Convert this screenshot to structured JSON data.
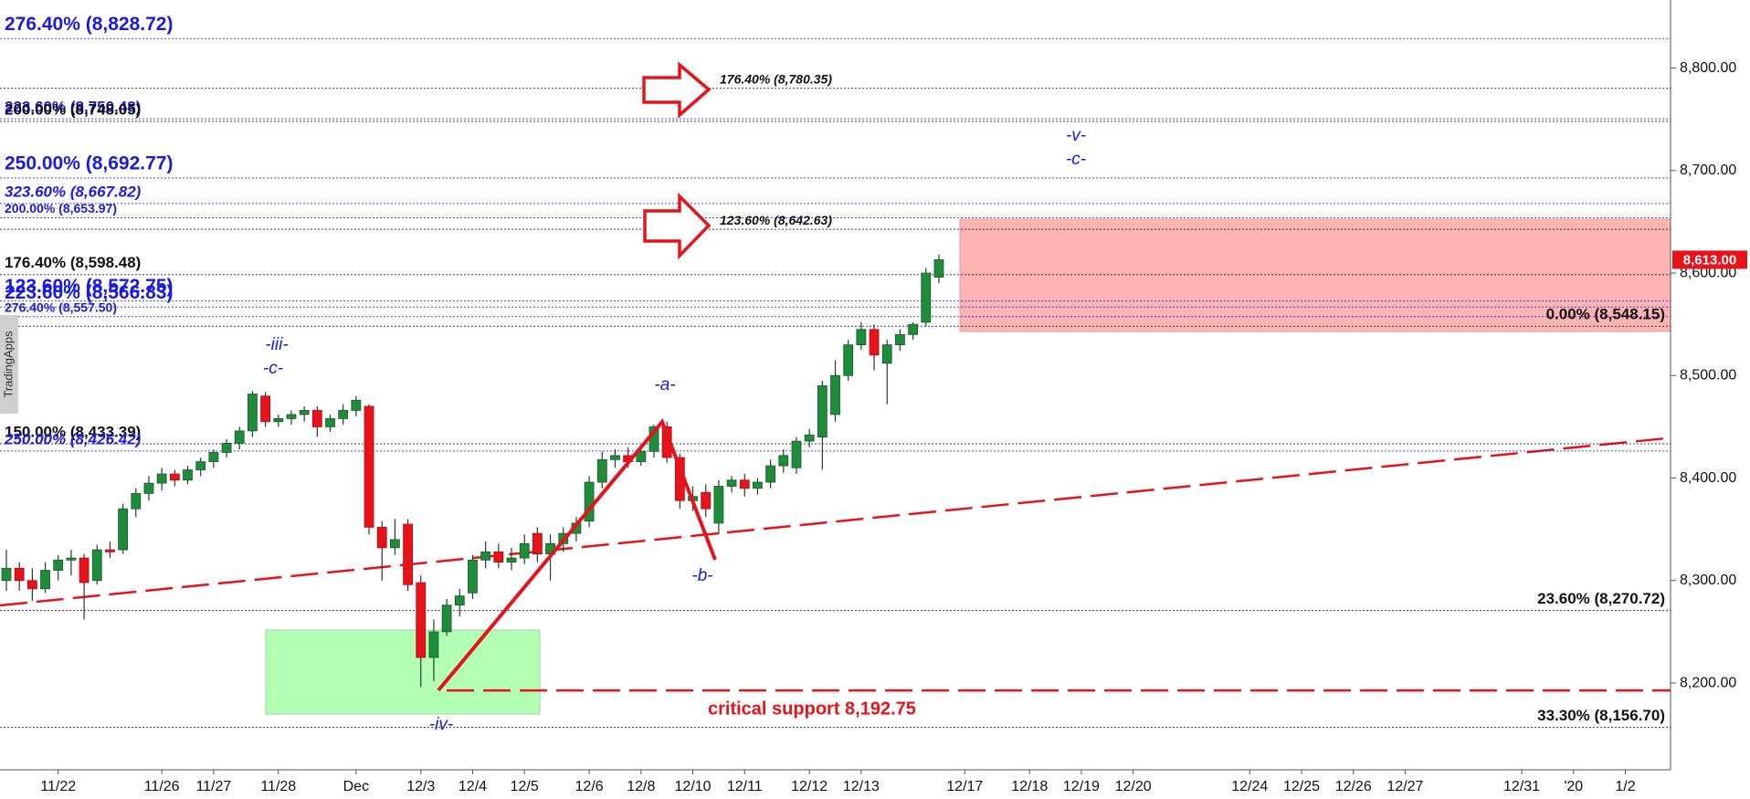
{
  "chart_data": {
    "type": "candlestick",
    "side_label": "TradingApps",
    "categories": [
      null,
      null,
      null,
      null,
      "11/22",
      null,
      null,
      null,
      null,
      null,
      null,
      null,
      "11/26",
      null,
      null,
      null,
      "11/27",
      null,
      null,
      null,
      null,
      "11/28",
      null,
      null,
      null,
      null,
      null,
      "Dec",
      null,
      null,
      null,
      null,
      "12/3",
      null,
      null,
      null,
      "12/4",
      null,
      null,
      null,
      "12/5",
      null,
      null,
      null,
      null,
      "12/6",
      null,
      null,
      null,
      "12/8",
      null,
      null,
      null,
      "12/10",
      null,
      null,
      null,
      "12/11",
      null,
      null,
      null,
      null,
      "12/12",
      null,
      null,
      null,
      "12/13",
      null,
      null,
      null,
      null,
      null,
      null,
      null,
      "12/17",
      null,
      null,
      null,
      null,
      "12/18",
      null,
      null,
      null,
      "12/19",
      null,
      null,
      null,
      "12/20",
      null,
      null,
      null,
      null,
      null,
      null,
      null,
      null,
      "12/24",
      null,
      null,
      null,
      "12/25",
      null,
      null,
      null,
      "12/26",
      null,
      null,
      null,
      "12/27",
      null,
      null,
      null,
      null,
      null,
      null,
      null,
      null,
      "12/31",
      null,
      null,
      null,
      "'20",
      null,
      null,
      null,
      "1/2",
      null,
      null,
      null
    ],
    "open": [
      8300,
      8312,
      8300,
      8292,
      8310,
      8320,
      8322,
      8300,
      8330,
      8330,
      8370,
      8385,
      8395,
      8404,
      8398,
      8408,
      8416,
      8425,
      8434,
      8446,
      8480,
      8455,
      8458,
      8462,
      8466,
      8450,
      8458,
      8466,
      8470,
      8352,
      8332,
      8355,
      8298,
      8225,
      8250,
      8276,
      8288,
      8320,
      8328,
      8318,
      8322,
      8346,
      8326,
      8336,
      8346,
      8358,
      8396,
      8418,
      8422,
      8416,
      8426,
      8450,
      8420,
      8378,
      8386,
      8356,
      8392,
      8398,
      8390,
      8396,
      8412,
      8410,
      8436,
      8440,
      8462,
      8500,
      8530,
      8545,
      8512,
      8530,
      8540,
      8552,
      8596,
      null,
      null,
      null,
      null,
      null,
      null,
      null,
      null,
      null,
      null,
      null,
      null,
      null,
      null,
      null,
      null,
      null,
      null,
      null,
      null,
      null,
      null,
      null,
      null,
      null,
      null,
      null,
      null,
      null,
      null,
      null,
      null,
      null,
      null,
      null,
      null,
      null,
      null,
      null,
      null,
      null,
      null,
      null,
      null,
      null,
      null,
      null,
      null,
      null,
      null,
      null,
      null,
      null,
      null,
      null,
      null
    ],
    "high": [
      8330,
      8318,
      8312,
      8318,
      8325,
      8330,
      8326,
      8335,
      8338,
      8375,
      8390,
      8402,
      8410,
      8408,
      8412,
      8420,
      8428,
      8438,
      8450,
      8485,
      8484,
      8462,
      8466,
      8470,
      8470,
      8462,
      8472,
      8480,
      8472,
      8358,
      8360,
      8360,
      8305,
      8262,
      8282,
      8292,
      8325,
      8338,
      8336,
      8332,
      8345,
      8352,
      8345,
      8352,
      8362,
      8402,
      8426,
      8428,
      8430,
      8432,
      8452,
      8455,
      8424,
      8392,
      8394,
      8398,
      8402,
      8404,
      8400,
      8418,
      8428,
      8440,
      8448,
      8495,
      8515,
      8535,
      8552,
      8550,
      8535,
      8545,
      8552,
      8605,
      8618,
      null,
      null,
      null,
      null,
      null,
      null,
      null,
      null,
      null,
      null,
      null,
      null,
      null,
      null,
      null,
      null,
      null,
      null,
      null,
      null,
      null,
      null,
      null,
      null,
      null,
      null,
      null,
      null,
      null,
      null,
      null,
      null,
      null,
      null,
      null,
      null,
      null,
      null,
      null,
      null,
      null,
      null,
      null,
      null,
      null,
      null,
      null,
      null,
      null,
      null,
      null,
      null,
      null,
      null,
      null,
      null
    ],
    "low": [
      8290,
      8290,
      8280,
      8288,
      8300,
      8305,
      8262,
      8296,
      8322,
      8326,
      8362,
      8378,
      8388,
      8392,
      8394,
      8402,
      8410,
      8420,
      8428,
      8440,
      8450,
      8450,
      8452,
      8455,
      8440,
      8445,
      8452,
      8460,
      8345,
      8300,
      8325,
      8290,
      8196,
      8202,
      8246,
      8265,
      8282,
      8312,
      8312,
      8310,
      8316,
      8318,
      8300,
      8328,
      8338,
      8352,
      8390,
      8410,
      8410,
      8412,
      8420,
      8415,
      8370,
      8368,
      8362,
      8345,
      8386,
      8382,
      8384,
      8390,
      8405,
      8404,
      8430,
      8408,
      8455,
      8495,
      8525,
      8505,
      8472,
      8524,
      8535,
      8548,
      8590,
      null,
      null,
      null,
      null,
      null,
      null,
      null,
      null,
      null,
      null,
      null,
      null,
      null,
      null,
      null,
      null,
      null,
      null,
      null,
      null,
      null,
      null,
      null,
      null,
      null,
      null,
      null,
      null,
      null,
      null,
      null,
      null,
      null,
      null,
      null,
      null,
      null,
      null,
      null,
      null,
      null,
      null,
      null,
      null,
      null,
      null,
      null,
      null,
      null,
      null,
      null,
      null,
      null,
      null,
      null,
      null
    ],
    "close": [
      8312,
      8300,
      8292,
      8310,
      8320,
      8322,
      8298,
      8330,
      8328,
      8370,
      8385,
      8395,
      8404,
      8398,
      8408,
      8416,
      8425,
      8434,
      8446,
      8482,
      8455,
      8458,
      8462,
      8466,
      8450,
      8458,
      8466,
      8476,
      8352,
      8332,
      8340,
      8296,
      8225,
      8250,
      8276,
      8285,
      8320,
      8328,
      8318,
      8322,
      8336,
      8326,
      8336,
      8346,
      8356,
      8396,
      8418,
      8422,
      8416,
      8426,
      8450,
      8420,
      8378,
      8382,
      8370,
      8392,
      8398,
      8390,
      8396,
      8412,
      8422,
      8436,
      8442,
      8490,
      8500,
      8530,
      8545,
      8520,
      8530,
      8540,
      8550,
      8600,
      8613,
      null,
      null,
      null,
      null,
      null,
      null,
      null,
      null,
      null,
      null,
      null,
      null,
      null,
      null,
      null,
      null,
      null,
      null,
      null,
      null,
      null,
      null,
      null,
      null,
      null,
      null,
      null,
      null,
      null,
      null,
      null,
      null,
      null,
      null,
      null,
      null,
      null,
      null,
      null,
      null,
      null,
      null,
      null,
      null,
      null,
      null,
      null,
      null,
      null,
      null,
      null,
      null,
      null,
      null,
      null,
      null
    ],
    "up_color": "#1e8c3a",
    "down_color": "#e8121a",
    "ylim": [
      8115.4,
      8866.4
    ],
    "yticks": [
      {
        "value": 8200,
        "label": "8,200.00"
      },
      {
        "value": 8300,
        "label": "8,300.00"
      },
      {
        "value": 8400,
        "label": "8,400.00"
      },
      {
        "value": 8500,
        "label": "8,500.00"
      },
      {
        "value": 8600,
        "label": "8,600.00"
      },
      {
        "value": 8700,
        "label": "8,700.00"
      },
      {
        "value": 8800,
        "label": "8,800.00"
      }
    ],
    "last_price": {
      "value": 8613,
      "label": "8,613.00",
      "color": "#e8121a"
    },
    "support": {
      "value": 8192.75,
      "label": "critical support 8,192.75",
      "color": "#e8121a"
    },
    "levels": [
      {
        "value": 8828.72,
        "label": "276.40% (8,828.72)",
        "color": "#1a1ae6",
        "align": "left",
        "style": "large"
      },
      {
        "value": 8780.35,
        "label": "176.40% (8,780.35)",
        "color": "#111111",
        "align": "arrow",
        "style": "small-italic"
      },
      {
        "value": 8750.43,
        "label": "223.60% (8,750.43)",
        "color": "#1a1ae6",
        "align": "left",
        "style": "medium"
      },
      {
        "value": 8748.05,
        "label": "200.00% (8,748.05)",
        "color": "#111111",
        "align": "left",
        "style": "medium"
      },
      {
        "value": 8692.77,
        "label": "250.00% (8,692.77)",
        "color": "#1a1ae6",
        "align": "left",
        "style": "large"
      },
      {
        "value": 8667.82,
        "label": "323.60% (8,667.82)",
        "color": "#1a1ae6",
        "align": "left",
        "style": "medium-italic"
      },
      {
        "value": 8653.97,
        "label": "200.00% (8,653.97)",
        "color": "#1a1ae6",
        "align": "left",
        "style": "small"
      },
      {
        "value": 8642.63,
        "label": "123.60% (8,642.63)",
        "color": "#111111",
        "align": "arrow",
        "style": "small-italic"
      },
      {
        "value": 8598.48,
        "label": "176.40% (8,598.48)",
        "color": "#111111",
        "align": "left",
        "style": "medium"
      },
      {
        "value": 8572.75,
        "label": "123.60% (8,572.75)",
        "color": "#1a1ae6",
        "align": "left",
        "style": "large"
      },
      {
        "value": 8566.83,
        "label": "223.60% (8,566.83)",
        "color": "#1a1ae6",
        "align": "left",
        "style": "large"
      },
      {
        "value": 8557.5,
        "label": "276.40% (8,557.50)",
        "color": "#1a1ae6",
        "align": "left",
        "style": "small"
      },
      {
        "value": 8548.15,
        "label": "0.00% (8,548.15)",
        "color": "#111111",
        "align": "right",
        "style": "medium"
      },
      {
        "value": 8433.39,
        "label": "150.00% (8,433.39)",
        "color": "#111111",
        "align": "left",
        "style": "medium"
      },
      {
        "value": 8426.42,
        "label": "250.00% (8,426.42)",
        "color": "#1a1ae6",
        "align": "left",
        "style": "medium-italic"
      },
      {
        "value": 8270.72,
        "label": "23.60% (8,270.72)",
        "color": "#111111",
        "align": "right",
        "style": "medium"
      },
      {
        "value": 8156.7,
        "label": "33.30% (8,156.70)",
        "color": "#111111",
        "align": "right",
        "style": "medium"
      }
    ],
    "wave_labels": [
      "-iii-",
      "-c-",
      "-a-",
      "-b-",
      "-iv-",
      "-v-",
      "-c-"
    ]
  }
}
